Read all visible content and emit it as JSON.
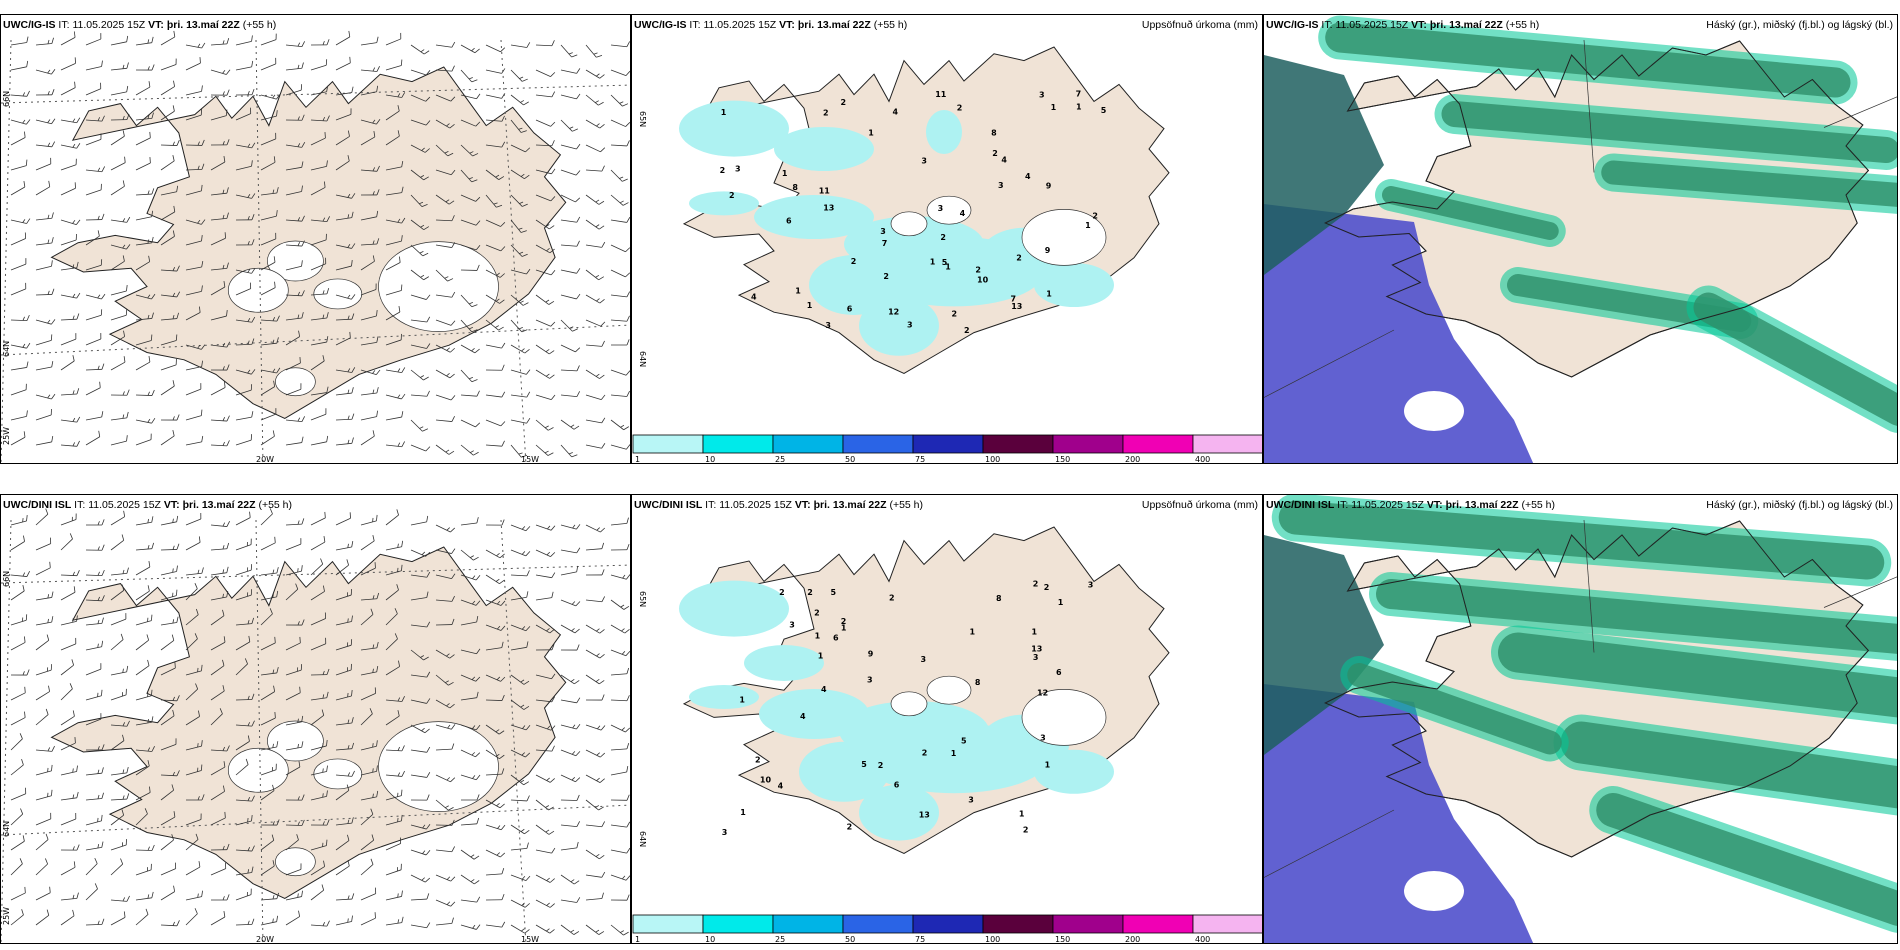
{
  "panels": [
    {
      "row": 0,
      "col": 0,
      "type": "wind",
      "model": "UWC/IG-IS",
      "it_label": "IT:",
      "it": "11.05.2025 15Z",
      "vt_label": "VT:",
      "vt": "þri. 13.maí 22Z",
      "lead": "(+55 h)",
      "right": "",
      "lat_labels": [
        "66N",
        "64N",
        "25W"
      ],
      "lon_labels": [
        "20W",
        "15W"
      ]
    },
    {
      "row": 0,
      "col": 1,
      "type": "precip",
      "model": "UWC/IG-IS",
      "it_label": "IT:",
      "it": "11.05.2025 15Z",
      "vt_label": "VT:",
      "vt": "þri. 13.maí 22Z",
      "lead": "(+55 h)",
      "right": "Uppsöfnuð úrkoma (mm)",
      "lat_labels": [
        "65N",
        "64N"
      ],
      "values": [
        "2",
        "2",
        "1",
        "1",
        "4",
        "2",
        "1",
        "13",
        "7",
        "1",
        "4",
        "2",
        "3",
        "5",
        "3",
        "3",
        "2",
        "1",
        "2",
        "9",
        "7",
        "1",
        "3",
        "13",
        "4",
        "4",
        "6",
        "8",
        "3",
        "1",
        "10",
        "7",
        "8",
        "6",
        "2",
        "12",
        "11",
        "3",
        "2",
        "2",
        "4",
        "3",
        "5",
        "1",
        "2",
        "9",
        "1",
        "2",
        "2",
        "1",
        "2",
        "3",
        "11",
        "2",
        "1"
      ]
    },
    {
      "row": 0,
      "col": 2,
      "type": "cloud",
      "model": "UWC/IG-IS",
      "it_label": "IT:",
      "it": "11.05.2025 15Z",
      "vt_label": "VT:",
      "vt": "þri. 13.maí 22Z",
      "lead": "(+55 h)",
      "right": "Háský (gr.), miðský (fj.bl.) og lágský (bl.)"
    },
    {
      "row": 1,
      "col": 0,
      "type": "wind",
      "model": "UWC/DINI ISL",
      "it_label": "IT:",
      "it": "11.05.2025 15Z",
      "vt_label": "VT:",
      "vt": "þri. 13.maí 22Z",
      "lead": "(+55 h)",
      "right": "",
      "lat_labels": [
        "66N",
        "64N",
        "25W"
      ],
      "lon_labels": [
        "20W",
        "15W"
      ]
    },
    {
      "row": 1,
      "col": 1,
      "type": "precip",
      "model": "UWC/DINI ISL",
      "it_label": "IT:",
      "it": "11.05.2025 15Z",
      "vt_label": "VT:",
      "vt": "þri. 13.maí 22Z",
      "lead": "(+55 h)",
      "right": "Uppsöfnuð úrkoma (mm)",
      "lat_labels": [
        "65N",
        "64N"
      ],
      "values": [
        "2",
        "2",
        "3",
        "3",
        "1",
        "13",
        "2",
        "2",
        "3",
        "2",
        "2",
        "1",
        "1",
        "5",
        "6",
        "3",
        "8",
        "5",
        "6",
        "8",
        "1",
        "2",
        "1",
        "10",
        "4",
        "6",
        "3",
        "2",
        "12",
        "3",
        "2",
        "4",
        "5",
        "4",
        "2",
        "2",
        "2",
        "1",
        "1",
        "1",
        "1",
        "9",
        "3",
        "13",
        "1",
        "3",
        "1"
      ]
    },
    {
      "row": 1,
      "col": 2,
      "type": "cloud",
      "model": "UWC/DINI ISL",
      "it_label": "IT:",
      "it": "11.05.2025 15Z",
      "vt_label": "VT:",
      "vt": "þri. 13.maí 22Z",
      "lead": "(+55 h)",
      "right": "Háský (gr.), miðský (fj.bl.) og lágský (bl.)"
    }
  ],
  "colorbar": {
    "labels": [
      "1",
      "10",
      "25",
      "50",
      "75",
      "100",
      "150",
      "200",
      "400"
    ],
    "colors": [
      "#b8f6f6",
      "#00eaea",
      "#00b4e6",
      "#2a64e6",
      "#1e28b4",
      "#5a003c",
      "#a0008c",
      "#f000b4",
      "#f5b4f0"
    ]
  },
  "colors": {
    "land": "#f0e3d6",
    "precip_light": "#aef2f2",
    "cloud_high": "#00c896",
    "cloud_mid": "#2f8f6a",
    "cloud_low": "#5050cc",
    "cloud_dark": "#1f5f5f"
  }
}
